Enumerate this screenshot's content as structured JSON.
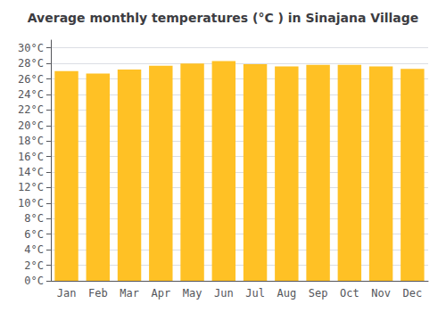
{
  "chart_data": {
    "type": "bar",
    "title": "Average monthly temperatures (°C ) in Sinajana Village",
    "categories": [
      "Jan",
      "Feb",
      "Mar",
      "Apr",
      "May",
      "Jun",
      "Jul",
      "Aug",
      "Sep",
      "Oct",
      "Nov",
      "Dec"
    ],
    "values": [
      27.0,
      26.7,
      27.2,
      27.7,
      28.0,
      28.3,
      27.9,
      27.6,
      27.8,
      27.8,
      27.6,
      27.3
    ],
    "color": "#FFC125",
    "ylim": [
      0,
      31
    ],
    "yticks": [
      {
        "value": 0,
        "label": "0°C"
      },
      {
        "value": 2,
        "label": "2°C"
      },
      {
        "value": 4,
        "label": "4°C"
      },
      {
        "value": 6,
        "label": "6°C"
      },
      {
        "value": 8,
        "label": "8°C"
      },
      {
        "value": 10,
        "label": "10°C"
      },
      {
        "value": 12,
        "label": "12°C"
      },
      {
        "value": 14,
        "label": "14°C"
      },
      {
        "value": 16,
        "label": "16°C"
      },
      {
        "value": 18,
        "label": "18°C"
      },
      {
        "value": 20,
        "label": "20°C"
      },
      {
        "value": 22,
        "label": "22°C"
      },
      {
        "value": 24,
        "label": "24°C"
      },
      {
        "value": 26,
        "label": "26°C"
      },
      {
        "value": 28,
        "label": "28°C"
      },
      {
        "value": 30,
        "label": "30°C"
      }
    ],
    "grid": true
  }
}
